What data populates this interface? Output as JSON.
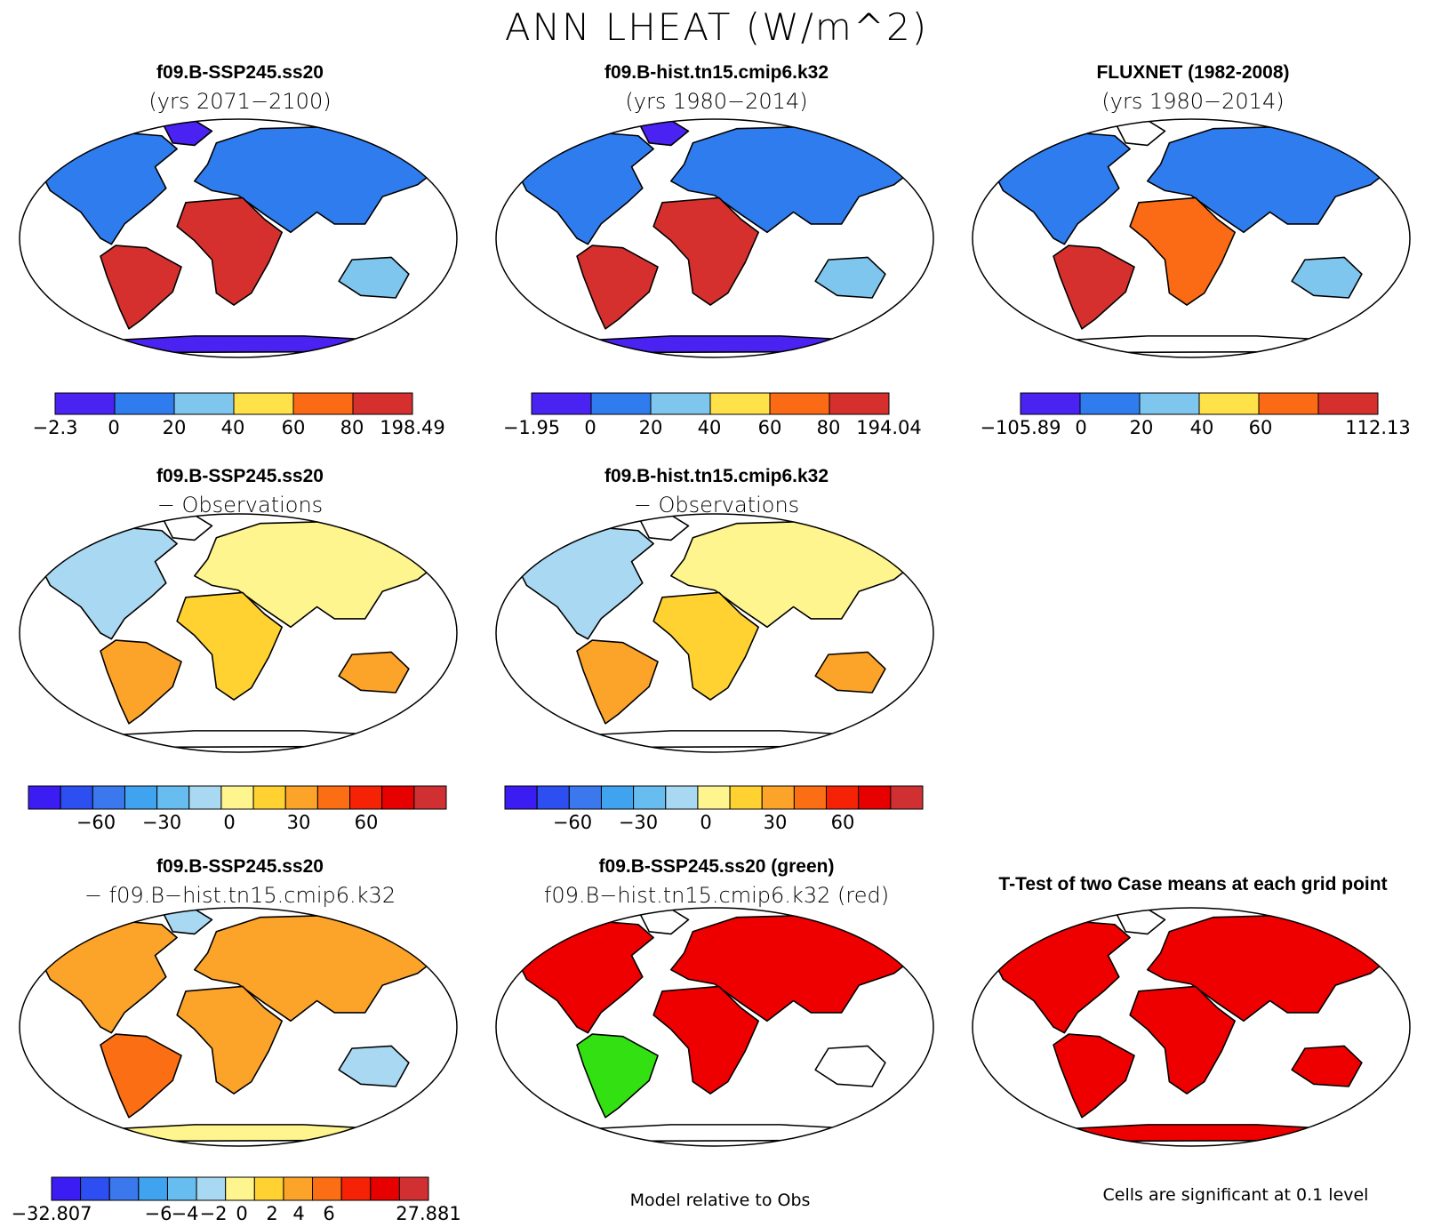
{
  "title": "ANN LHEAT (W/m^2)",
  "colors": {
    "seq": [
      "#4a22f2",
      "#2f7cee",
      "#7fc6ee",
      "#ffe14a",
      "#fb6a14",
      "#d6302e"
    ],
    "div": [
      "#3b1cf3",
      "#2d4ef0",
      "#3b78ed",
      "#3fa3f0",
      "#67bdf0",
      "#a9d8f2",
      "#fff58e",
      "#ffd232",
      "#fca32a",
      "#fb6e14",
      "#f52206",
      "#e60000",
      "#d03032"
    ],
    "green": "#33e012",
    "red": "#ef0000",
    "land": "#ffffff"
  },
  "panels": [
    {
      "id": "p1",
      "title": "f09.B-SSP245.ss20",
      "subtitle": "(yrs 2071−2100)",
      "colorbar": {
        "palette": "seq",
        "labels": [
          "−2.3",
          "0",
          "20",
          "40",
          "60",
          "80",
          "198.49"
        ]
      }
    },
    {
      "id": "p2",
      "title": "f09.B-hist.tn15.cmip6.k32",
      "subtitle": "(yrs 1980−2014)",
      "colorbar": {
        "palette": "seq",
        "labels": [
          "−1.95",
          "0",
          "20",
          "40",
          "60",
          "80",
          "194.04"
        ]
      }
    },
    {
      "id": "p3",
      "title": "FLUXNET (1982-2008)",
      "subtitle": "(yrs 1980−2014)",
      "colorbar": {
        "palette": "seq",
        "labels": [
          "−105.89",
          "0",
          "20",
          "40",
          "60",
          "",
          "112.13"
        ]
      }
    },
    {
      "id": "p4",
      "title": "f09.B-SSP245.ss20",
      "subtitle": "− Observations",
      "colorbar": {
        "palette": "div",
        "labels": [
          "−60",
          "−30",
          "0",
          "30",
          "60"
        ]
      }
    },
    {
      "id": "p5",
      "title": "f09.B-hist.tn15.cmip6.k32",
      "subtitle": "− Observations",
      "colorbar": {
        "palette": "div",
        "labels": [
          "−60",
          "−30",
          "0",
          "30",
          "60"
        ]
      }
    },
    {
      "id": "p6",
      "title": "f09.B-SSP245.ss20",
      "subtitle": "− f09.B−hist.tn15.cmip6.k32",
      "colorbar": {
        "palette": "div",
        "labels": [
          "−32.807",
          "−6",
          "−4",
          "−2",
          "0",
          "2",
          "4",
          "6",
          "27.881"
        ]
      }
    },
    {
      "id": "p7",
      "title": "f09.B-SSP245.ss20 (green)",
      "subtitle": "f09.B−hist.tn15.cmip6.k32 (red)"
    },
    {
      "id": "p8",
      "title": "T-Test of two Case means at each grid point"
    }
  ],
  "notes": {
    "model_relative": "Model relative to Obs",
    "significance": "Cells are significant at 0.1 level"
  }
}
